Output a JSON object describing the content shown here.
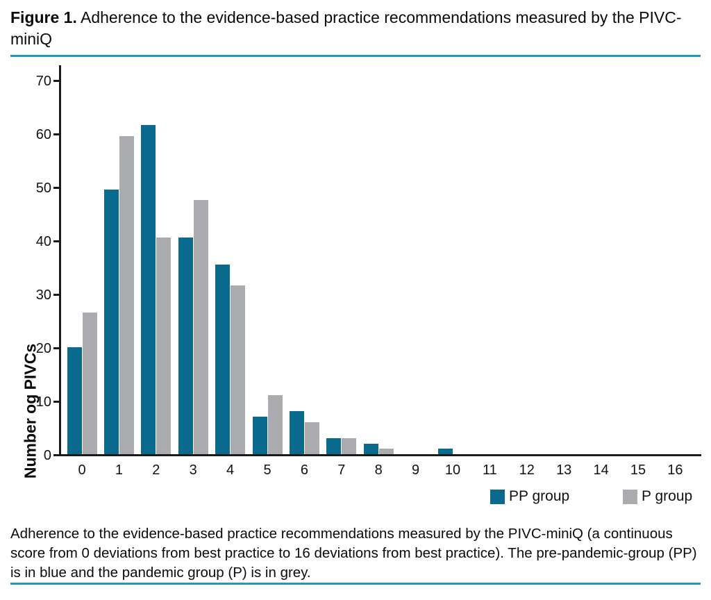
{
  "figure": {
    "label": "Figure 1.",
    "title_rest": " Adherence to the evidence-based practice recommendations measured by the PIVC-miniQ"
  },
  "accent_rule_color": "#1e96cd",
  "chart_data": {
    "type": "bar",
    "categories": [
      "0",
      "1",
      "2",
      "3",
      "4",
      "5",
      "6",
      "7",
      "8",
      "9",
      "10",
      "11",
      "12",
      "13",
      "14",
      "15",
      "16"
    ],
    "series": [
      {
        "name": "PP group",
        "color": "#0a6a8e",
        "values": [
          20,
          49.5,
          61.5,
          40.5,
          35.5,
          7,
          8,
          3,
          2,
          0,
          1,
          0,
          0,
          0,
          0,
          0,
          0
        ]
      },
      {
        "name": "P group",
        "color": "#a9abae",
        "values": [
          26.5,
          59.5,
          40.5,
          47.5,
          31.5,
          11,
          6,
          3,
          1,
          0,
          0,
          0,
          0,
          0,
          0,
          0,
          0
        ]
      }
    ],
    "title": "",
    "xlabel": "",
    "ylabel": "Number og PIVCs",
    "ylim": [
      0,
      70
    ],
    "yticks": [
      0,
      10,
      20,
      30,
      40,
      50,
      60,
      70
    ],
    "grid": false,
    "legend_position": "bottom-right"
  },
  "legend": {
    "pp_label": "PP group",
    "p_label": "P group"
  },
  "caption": "Adherence to the evidence-based practice recommendations measured by the PIVC-miniQ (a continuous score from 0 deviations from best practice to 16 deviations from best practice). The pre-pandemic-group (PP) is in blue and the pandemic group (P) is in grey."
}
